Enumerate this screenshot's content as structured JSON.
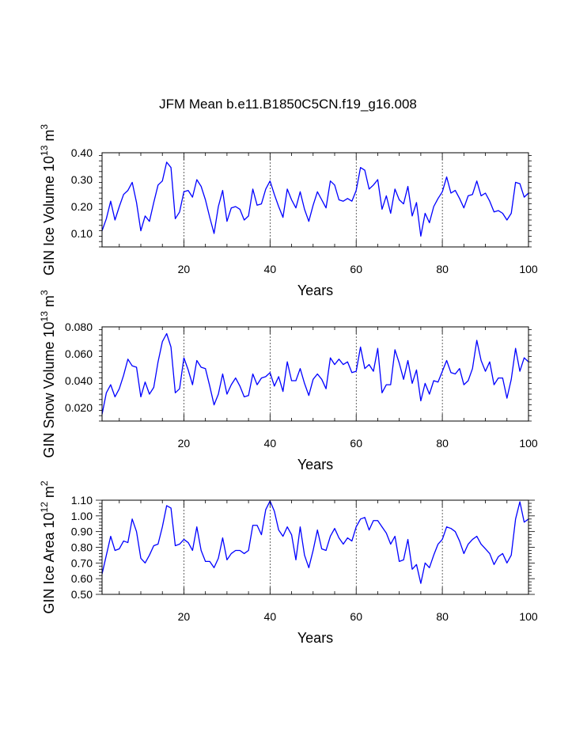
{
  "figure": {
    "title": "JFM Mean b.e11.B1850C5CN.f19_g16.008"
  },
  "chart_data": [
    {
      "type": "line",
      "xlabel": "Years",
      "ylabel_main": "GIN Ice Volume 10",
      "ylabel_exp1": "13",
      "ylabel_unit": " m",
      "ylabel_exp2": "3",
      "xlim": [
        1,
        100
      ],
      "ylim": [
        0.05,
        0.4
      ],
      "yticks": [
        0.1,
        0.2,
        0.3,
        0.4
      ],
      "ytick_labels": [
        "0.10",
        "0.20",
        "0.30",
        "0.40"
      ],
      "xticks": [
        20,
        40,
        60,
        80,
        100
      ],
      "xtick_labels": [
        "20",
        "40",
        "60",
        "80",
        "100"
      ],
      "dashed_x": [
        20,
        40,
        60,
        80
      ],
      "x_start": 1,
      "series": [
        {
          "name": "GIN Ice Volume",
          "color": "#0000ff",
          "values": [
            0.11,
            0.155,
            0.22,
            0.15,
            0.2,
            0.245,
            0.26,
            0.29,
            0.215,
            0.11,
            0.165,
            0.145,
            0.215,
            0.28,
            0.295,
            0.365,
            0.345,
            0.155,
            0.18,
            0.255,
            0.26,
            0.235,
            0.3,
            0.275,
            0.225,
            0.16,
            0.1,
            0.2,
            0.26,
            0.145,
            0.195,
            0.2,
            0.19,
            0.15,
            0.165,
            0.265,
            0.205,
            0.21,
            0.265,
            0.295,
            0.245,
            0.2,
            0.16,
            0.265,
            0.225,
            0.195,
            0.255,
            0.19,
            0.145,
            0.205,
            0.255,
            0.225,
            0.195,
            0.295,
            0.28,
            0.225,
            0.22,
            0.23,
            0.22,
            0.26,
            0.345,
            0.335,
            0.265,
            0.28,
            0.3,
            0.19,
            0.24,
            0.175,
            0.265,
            0.225,
            0.21,
            0.275,
            0.165,
            0.215,
            0.09,
            0.175,
            0.14,
            0.2,
            0.23,
            0.255,
            0.31,
            0.25,
            0.26,
            0.23,
            0.195,
            0.24,
            0.245,
            0.295,
            0.24,
            0.25,
            0.22,
            0.18,
            0.185,
            0.175,
            0.15,
            0.175,
            0.29,
            0.285,
            0.235,
            0.25
          ]
        }
      ]
    },
    {
      "type": "line",
      "xlabel": "Years",
      "ylabel_main": "GIN Snow Volume 10",
      "ylabel_exp1": "13",
      "ylabel_unit": " m",
      "ylabel_exp2": "3",
      "xlim": [
        1,
        100
      ],
      "ylim": [
        0.01,
        0.08
      ],
      "yticks": [
        0.02,
        0.04,
        0.06,
        0.08
      ],
      "ytick_labels": [
        "0.020",
        "0.040",
        "0.060",
        "0.080"
      ],
      "xticks": [
        20,
        40,
        60,
        80,
        100
      ],
      "xtick_labels": [
        "20",
        "40",
        "60",
        "80",
        "100"
      ],
      "dashed_x": [
        20,
        40,
        60,
        80
      ],
      "x_start": 1,
      "series": [
        {
          "name": "GIN Snow Volume",
          "color": "#0000ff",
          "values": [
            0.015,
            0.031,
            0.037,
            0.028,
            0.034,
            0.044,
            0.056,
            0.051,
            0.05,
            0.028,
            0.039,
            0.03,
            0.035,
            0.054,
            0.069,
            0.075,
            0.065,
            0.031,
            0.034,
            0.057,
            0.048,
            0.037,
            0.055,
            0.05,
            0.049,
            0.036,
            0.022,
            0.03,
            0.045,
            0.03,
            0.037,
            0.042,
            0.036,
            0.028,
            0.029,
            0.045,
            0.037,
            0.042,
            0.043,
            0.046,
            0.036,
            0.043,
            0.032,
            0.054,
            0.04,
            0.04,
            0.049,
            0.038,
            0.029,
            0.041,
            0.045,
            0.041,
            0.034,
            0.057,
            0.052,
            0.056,
            0.052,
            0.054,
            0.046,
            0.047,
            0.065,
            0.049,
            0.052,
            0.047,
            0.064,
            0.031,
            0.037,
            0.037,
            0.063,
            0.053,
            0.041,
            0.055,
            0.038,
            0.048,
            0.025,
            0.038,
            0.03,
            0.04,
            0.039,
            0.047,
            0.055,
            0.046,
            0.045,
            0.049,
            0.037,
            0.04,
            0.049,
            0.07,
            0.055,
            0.047,
            0.054,
            0.037,
            0.042,
            0.042,
            0.027,
            0.041,
            0.064,
            0.047,
            0.057,
            0.054
          ]
        }
      ]
    },
    {
      "type": "line",
      "xlabel": "Years",
      "ylabel_main": "GIN Ice Area 10",
      "ylabel_exp1": "12",
      "ylabel_unit": " m",
      "ylabel_exp2": "2",
      "xlim": [
        1,
        100
      ],
      "ylim": [
        0.5,
        1.1
      ],
      "yticks": [
        0.5,
        0.6,
        0.7,
        0.8,
        0.9,
        1.0,
        1.1
      ],
      "ytick_labels": [
        "0.50",
        "0.60",
        "0.70",
        "0.80",
        "0.90",
        "1.00",
        "1.10"
      ],
      "xticks": [
        20,
        40,
        60,
        80,
        100
      ],
      "xtick_labels": [
        "20",
        "40",
        "60",
        "80",
        "100"
      ],
      "dashed_x": [
        20,
        40,
        60,
        80
      ],
      "x_start": 1,
      "series": [
        {
          "name": "GIN Ice Area",
          "color": "#0000ff",
          "values": [
            0.63,
            0.75,
            0.87,
            0.78,
            0.79,
            0.84,
            0.83,
            0.98,
            0.9,
            0.73,
            0.7,
            0.75,
            0.81,
            0.82,
            0.93,
            1.065,
            1.05,
            0.81,
            0.82,
            0.85,
            0.83,
            0.78,
            0.93,
            0.78,
            0.71,
            0.71,
            0.67,
            0.73,
            0.86,
            0.72,
            0.76,
            0.78,
            0.78,
            0.76,
            0.78,
            0.94,
            0.94,
            0.88,
            1.04,
            1.095,
            1.03,
            0.91,
            0.87,
            0.93,
            0.88,
            0.72,
            0.93,
            0.75,
            0.67,
            0.78,
            0.91,
            0.79,
            0.78,
            0.87,
            0.92,
            0.86,
            0.82,
            0.86,
            0.84,
            0.93,
            0.98,
            0.99,
            0.91,
            0.97,
            0.97,
            0.93,
            0.89,
            0.82,
            0.87,
            0.71,
            0.72,
            0.85,
            0.66,
            0.69,
            0.57,
            0.7,
            0.67,
            0.75,
            0.82,
            0.85,
            0.93,
            0.92,
            0.9,
            0.84,
            0.76,
            0.82,
            0.85,
            0.87,
            0.82,
            0.79,
            0.76,
            0.69,
            0.74,
            0.76,
            0.7,
            0.75,
            0.98,
            1.09,
            0.96,
            0.98
          ]
        }
      ]
    }
  ]
}
